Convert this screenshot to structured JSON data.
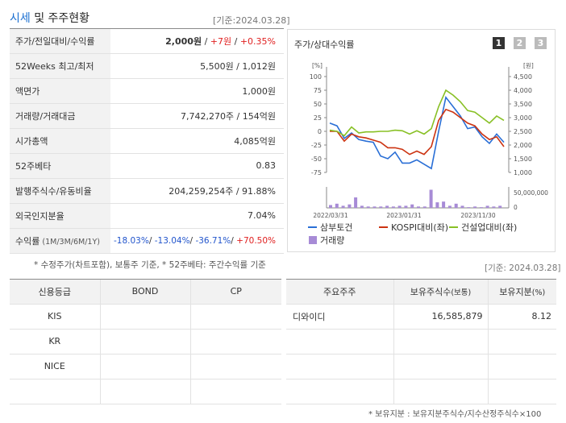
{
  "header": {
    "title_hl": "시세",
    "title_rest": " 및 주주현황",
    "base_date": "[기준:2024.03.28]"
  },
  "quote_rows": [
    {
      "label": "주가/전일대비/수익률",
      "value": ""
    },
    {
      "label": "52Weeks 최고/최저",
      "value": "5,500원 / 1,012원"
    },
    {
      "label": "액면가",
      "value": "1,000원"
    },
    {
      "label": "거래량/거래대금",
      "value": "7,742,270주 / 154억원"
    },
    {
      "label": "시가총액",
      "value": "4,085억원"
    },
    {
      "label": "52주베타",
      "value": "0.83"
    },
    {
      "label": "발행주식수/유동비율",
      "value": "204,259,254주 / 91.88%"
    },
    {
      "label": "외국인지분율",
      "value": "7.04%"
    },
    {
      "label": "수익률",
      "label_sub": "(1M/3M/6M/1Y)",
      "value": ""
    }
  ],
  "price": {
    "price": "2,000원",
    "change": "+7원",
    "rate": "+0.35%",
    "sep": " / "
  },
  "returns": {
    "m1": "-18.03%",
    "m3": "-13.04%",
    "m6": "-36.71%",
    "y1": "+70.50%",
    "sep": "/ "
  },
  "quote_note": "* 수정주가(차트포함), 보통주 기준, * 52주베타: 주간수익률 기준",
  "chart": {
    "title": "주가/상대수익률",
    "pages": [
      "1",
      "2",
      "3"
    ],
    "left_unit": "[%]",
    "right_unit": "[원]",
    "volume_tick": "50,000,000",
    "volume_zero": "0",
    "colors": {
      "stock": "#2a6fd6",
      "kospi": "#cc3311",
      "sector": "#88c025",
      "volume": "#a78bd6"
    }
  },
  "chart_data": {
    "type": "line",
    "x_labels": [
      "2022/03/31",
      "2023/01/31",
      "2023/11/30"
    ],
    "left_axis": {
      "ticks": [
        100,
        75,
        50,
        25,
        0,
        -25,
        -50,
        -75
      ],
      "ylim": [
        -75,
        100
      ]
    },
    "right_axis": {
      "ticks": [
        "4,500",
        "4,000",
        "3,500",
        "3,000",
        "2,500",
        "2,000",
        "1,500",
        "1,000"
      ],
      "ylim": [
        1000,
        4500
      ]
    },
    "series": [
      {
        "name": "삼부토건",
        "values": [
          15,
          10,
          -13,
          -3,
          -15,
          -18,
          -20,
          -45,
          -50,
          -38,
          -58,
          -58,
          -52,
          -60,
          -68,
          0,
          62,
          45,
          28,
          5,
          8,
          -10,
          -22,
          -5,
          -20
        ]
      },
      {
        "name": "KOSPI대비(좌)",
        "values": [
          0,
          0,
          -18,
          -5,
          -10,
          -12,
          -16,
          -20,
          -30,
          -30,
          -33,
          -42,
          -36,
          -42,
          -28,
          20,
          40,
          35,
          25,
          15,
          10,
          -5,
          -15,
          -10,
          -28
        ]
      },
      {
        "name": "건설업대비(좌)",
        "values": [
          2,
          0,
          -8,
          8,
          -3,
          -1,
          -1,
          0,
          0,
          2,
          1,
          -5,
          1,
          -5,
          5,
          45,
          75,
          66,
          54,
          38,
          35,
          25,
          15,
          28,
          20
        ]
      }
    ],
    "volume_series": {
      "name": "거래량",
      "values": [
        4,
        6,
        3,
        5,
        15,
        3,
        2,
        2,
        2,
        3,
        2,
        3,
        3,
        5,
        2,
        2,
        26,
        8,
        9,
        3,
        6,
        3,
        1,
        2,
        1,
        3,
        2,
        3
      ]
    }
  },
  "legend": [
    {
      "label": "삼부토건",
      "key": "stock"
    },
    {
      "label": "KOSPI대비(좌)",
      "key": "kospi"
    },
    {
      "label": "건설업대비(좌)",
      "key": "sector"
    },
    {
      "label": "거래량",
      "key": "volume"
    }
  ],
  "shareholder_base_date": "[기준: 2024.03.28]",
  "credit": {
    "headers": [
      "신용등급",
      "BOND",
      "CP"
    ],
    "rows": [
      [
        "KIS",
        "",
        ""
      ],
      [
        "KR",
        "",
        ""
      ],
      [
        "NICE",
        "",
        ""
      ],
      [
        "",
        "",
        ""
      ]
    ]
  },
  "holders": {
    "headers": [
      "주요주주",
      "보유주식수",
      "(보통)",
      "보유지분",
      "(%)"
    ],
    "rows": [
      [
        "디와이디",
        "16,585,879",
        "8.12"
      ],
      [
        "",
        "",
        ""
      ],
      [
        "",
        "",
        ""
      ],
      [
        "",
        "",
        ""
      ]
    ]
  },
  "holders_note": "* 보유지분 : 보유지분주식수/지수산정주식수×100"
}
